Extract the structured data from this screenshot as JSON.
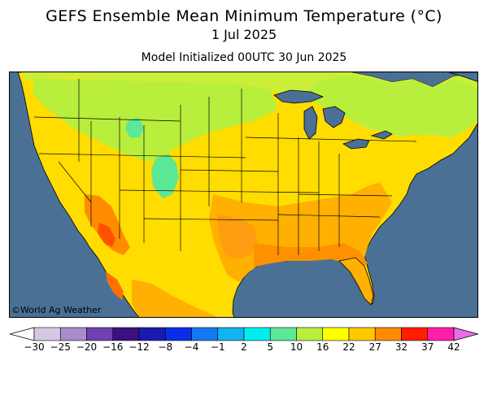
{
  "header": {
    "title": "GEFS Ensemble Mean Minimum Temperature (°C)",
    "valid_date": "1 Jul 2025",
    "init": "Model Initialized 00UTC 30 Jun 2025"
  },
  "map": {
    "credit": "©World Ag Weather",
    "ocean_color": "#4a7096",
    "land_base_color": "#ffdd00"
  },
  "legend": {
    "labels": [
      "−30",
      "−25",
      "−20",
      "−16",
      "−12",
      "−8",
      "−4",
      "−1",
      "2",
      "5",
      "10",
      "16",
      "22",
      "27",
      "32",
      "37",
      "42"
    ],
    "colors": [
      "#d4c8e4",
      "#a88ccc",
      "#7040b0",
      "#3c1080",
      "#1a1ab0",
      "#0a2ee8",
      "#1478f0",
      "#10b4f0",
      "#00eeee",
      "#5ce896",
      "#b8ee3c",
      "#ffff00",
      "#ffc800",
      "#ff8c00",
      "#ff1e00",
      "#ff1eaa",
      "#e86ee8"
    ]
  }
}
